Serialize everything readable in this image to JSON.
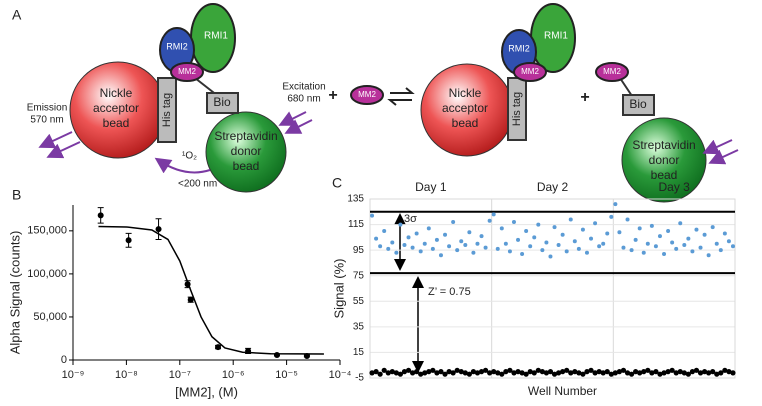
{
  "panel_a": {
    "label": "A",
    "rmi1": "RMI1",
    "rmi2": "RMI2",
    "mm2": "MM2",
    "his_tag": "His tag",
    "bio": "Bio",
    "acceptor_bead": [
      "Nickle",
      "acceptor",
      "bead"
    ],
    "donor_bead": [
      "Streptavidin",
      "donor",
      "bead"
    ],
    "emission": [
      "Emission",
      "570 nm"
    ],
    "excitation": [
      "Excitation",
      "680 nm"
    ],
    "singlet_oxygen": "¹O₂",
    "range": "<200 nm",
    "plus": "+"
  },
  "chart_data": [
    {
      "panel_label": "B",
      "type": "scatter",
      "x_label": "[MM2], (M)",
      "y_label": "Alpha Signal (counts)",
      "log_x": true,
      "xlim": [
        1e-09,
        0.0001
      ],
      "xticks": [
        {
          "value": 1e-09,
          "label": "10⁻⁹"
        },
        {
          "value": 1e-08,
          "label": "10⁻⁸"
        },
        {
          "value": 1e-07,
          "label": "10⁻⁷"
        },
        {
          "value": 1e-06,
          "label": "10⁻⁶"
        },
        {
          "value": 1e-05,
          "label": "10⁻⁵"
        },
        {
          "value": 0.0001,
          "label": "10⁻⁴"
        }
      ],
      "ylim": [
        0,
        180000
      ],
      "yticks": [
        0,
        {
          "value": 50000,
          "label": "50,000"
        },
        {
          "value": 100000,
          "label": "100,000"
        },
        {
          "value": 150000,
          "label": "150,000"
        }
      ],
      "x": [
        3.3e-09,
        1.1e-08,
        4e-08,
        1.4e-07,
        1.6e-07,
        5.2e-07,
        1.9e-06,
        6.6e-06,
        2.4e-05
      ],
      "values": [
        168000,
        139000,
        152000,
        88000,
        70000,
        15000,
        10500,
        5800,
        4600
      ],
      "errors": [
        9000,
        8000,
        12000,
        4000,
        3000,
        2000,
        3000,
        1000,
        1000
      ],
      "color": "#000000",
      "fit": {
        "x": [
          3e-09,
          1e-08,
          3e-08,
          6e-08,
          1e-07,
          1.6e-07,
          2.5e-07,
          4e-07,
          7e-07,
          1.5e-06,
          5e-06,
          5e-05
        ],
        "values": [
          155000,
          154500,
          151000,
          140000,
          115000,
          81000,
          50000,
          27000,
          14000,
          9000,
          7300,
          7000
        ]
      }
    },
    {
      "panel_label": "C",
      "type": "scatter",
      "x_label": "Well Number",
      "y_label": "Signal (%)",
      "categories": [
        "Day 1",
        "Day 2",
        "Day 3"
      ],
      "ylim": [
        -5,
        135
      ],
      "yticks": [
        -5,
        15,
        35,
        55,
        75,
        95,
        115,
        135
      ],
      "reference_lines": [
        125,
        77
      ],
      "annotations": [
        "3σ",
        "Z’ = 0.75"
      ],
      "series": [
        {
          "color": "#5b9bd5",
          "values": [
            122,
            104,
            98,
            110,
            96,
            101,
            93,
            115,
            99,
            105,
            97,
            108,
            94,
            100,
            112,
            96,
            103,
            91,
            107,
            98,
            117,
            95,
            102,
            99,
            109,
            93,
            100,
            106,
            97,
            118,
            123,
            96,
            112,
            100,
            94,
            117,
            103,
            92,
            110,
            98,
            105,
            115,
            95,
            101,
            90,
            113,
            99,
            107,
            94,
            119,
            102,
            96,
            111,
            93,
            104,
            116,
            98,
            100,
            108,
            121,
            131,
            109,
            97,
            119,
            95,
            103,
            112,
            93,
            100,
            114,
            98,
            106,
            92,
            110,
            101,
            96,
            116,
            99,
            104,
            94,
            111,
            97,
            107,
            91,
            113,
            100,
            95,
            108,
            102,
            98
          ]
        },
        {
          "color": "#000000",
          "values": [
            -1,
            0,
            -2,
            1,
            -1,
            0,
            -1,
            -2,
            0,
            1,
            -1,
            0,
            -2,
            -1,
            0,
            1,
            -1,
            0,
            -2,
            0,
            -1,
            1,
            0,
            -1,
            -2,
            0,
            -1,
            0,
            1,
            -1,
            0,
            -1,
            -2,
            0,
            1,
            -1,
            0,
            -1,
            -2,
            0,
            -1,
            1,
            0,
            -1,
            0,
            -2,
            -1,
            0,
            1,
            -1,
            0,
            -1,
            -2,
            0,
            1,
            -1,
            0,
            -1,
            0,
            -2,
            -1,
            0,
            1,
            -1,
            -2,
            0,
            -1,
            0,
            1,
            -1,
            0,
            -2,
            -1,
            0,
            1,
            -1,
            0,
            -1,
            -2,
            0,
            1,
            -1,
            0,
            -1,
            0,
            -2,
            -1,
            1,
            0,
            -1
          ]
        }
      ]
    }
  ]
}
